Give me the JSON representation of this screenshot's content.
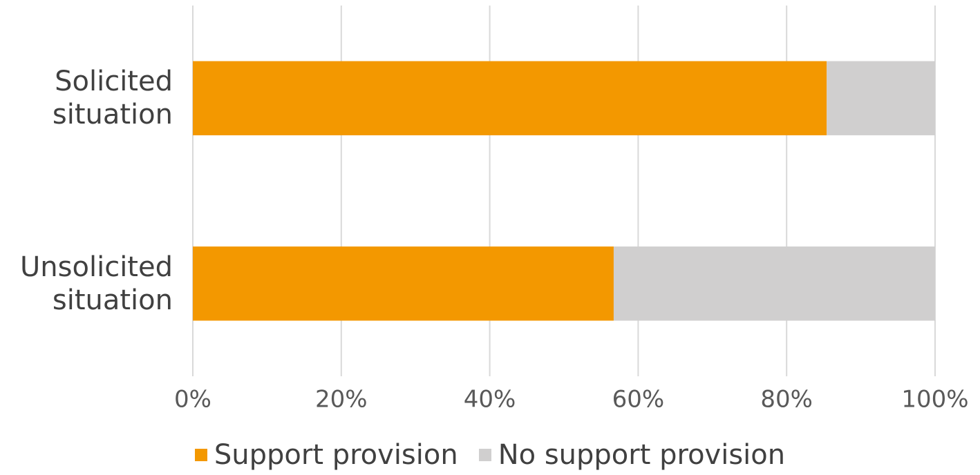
{
  "chart_data": {
    "type": "stacked_barh",
    "categories": [
      "Solicited situation",
      "Unsolicited situation"
    ],
    "series": [
      {
        "name": "Support provision",
        "color": "#f39800",
        "values": [
          85.4,
          56.7
        ]
      },
      {
        "name": "No support provision",
        "color": "#d0cfcf",
        "values": [
          14.6,
          43.3
        ]
      }
    ],
    "xlim": [
      0,
      100
    ],
    "xticks": [
      {
        "value": 0,
        "label": "0%"
      },
      {
        "value": 20,
        "label": "20%"
      },
      {
        "value": 40,
        "label": "40%"
      },
      {
        "value": 60,
        "label": "60%"
      },
      {
        "value": 80,
        "label": "80%"
      },
      {
        "value": 100,
        "label": "100%"
      }
    ],
    "grid": true,
    "legend": "bottom"
  }
}
